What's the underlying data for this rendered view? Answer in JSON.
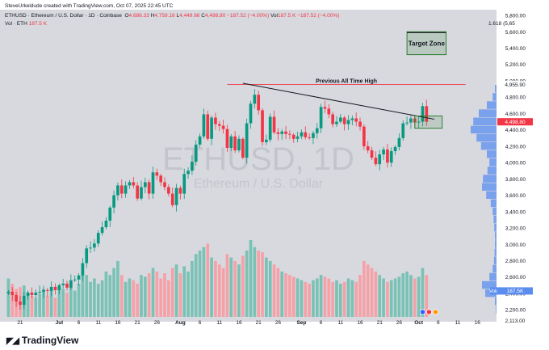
{
  "credit": "SteveUrkeldude created with TradingView.com, Oct 07, 2025 22:45 UTC",
  "legend": {
    "symbol": "ETHUSD · Ethereum / U.S. Dollar · 1D · Coinbase",
    "o_label": "O",
    "o": "4,686.33",
    "h_label": "H",
    "h": "4,759.16",
    "l_label": "L",
    "l": "4,449.66",
    "c_label": "C",
    "c": "4,498.80",
    "chg": "−187.52 (−4.00%)",
    "vol_label": "Vol",
    "vol": "187.5 K",
    "chg2": "−187.52 (−4.00%)"
  },
  "vol_legend": {
    "label": "Vol · ETH",
    "value": "187.5 K"
  },
  "watermark": {
    "symbol": "ETHUSD, 1D",
    "name": "Ethereum / U.S. Dollar"
  },
  "annotations": {
    "prev_ath": "Previous All Time High",
    "target_zone": "Target Zone",
    "fib": "1.618 (5,65"
  },
  "price_badges": {
    "high_label": "High",
    "high": "4,955.90",
    "last": "4,498.80",
    "volume_label": "Volume",
    "volume": "187.5K",
    "low_label": "Low",
    "low": "2,113.00"
  },
  "brand": "TradingView",
  "colors": {
    "up": "#089981",
    "down": "#f23645",
    "up_vol": "#79c2b5",
    "down_vol": "#f6a1a7",
    "target": "#2e7d32",
    "ath_line": "#f23645",
    "profile": "#5b8def",
    "bg": "#d8d9df"
  },
  "chart_data": {
    "type": "candlestick",
    "yticks": [
      2200,
      2400,
      2600,
      2800,
      3000,
      3200,
      3400,
      3600,
      3800,
      4000,
      4200,
      4400,
      4600,
      4800,
      5000,
      5200,
      5400,
      5600,
      5800
    ],
    "ylim": [
      2113,
      5850
    ],
    "xticks": [
      {
        "label": "21",
        "i": 3
      },
      {
        "label": "Jul",
        "i": 13
      },
      {
        "label": "6",
        "i": 18
      },
      {
        "label": "11",
        "i": 23
      },
      {
        "label": "16",
        "i": 28
      },
      {
        "label": "21",
        "i": 33
      },
      {
        "label": "26",
        "i": 38
      },
      {
        "label": "Aug",
        "i": 44
      },
      {
        "label": "6",
        "i": 49
      },
      {
        "label": "11",
        "i": 54
      },
      {
        "label": "16",
        "i": 59
      },
      {
        "label": "21",
        "i": 64
      },
      {
        "label": "26",
        "i": 69
      },
      {
        "label": "Sep",
        "i": 75
      },
      {
        "label": "6",
        "i": 80
      },
      {
        "label": "11",
        "i": 85
      },
      {
        "label": "16",
        "i": 90
      },
      {
        "label": "21",
        "i": 95
      },
      {
        "label": "26",
        "i": 100
      },
      {
        "label": "Oct",
        "i": 105
      },
      {
        "label": "6",
        "i": 110
      },
      {
        "label": "11",
        "i": 115
      },
      {
        "label": "16",
        "i": 120
      }
    ],
    "close": [
      2420,
      2380,
      2300,
      2260,
      2370,
      2410,
      2380,
      2410,
      2420,
      2440,
      2430,
      2480,
      2440,
      2500,
      2520,
      2470,
      2560,
      2570,
      2620,
      2770,
      2950,
      2960,
      3010,
      3140,
      3210,
      3290,
      3450,
      3600,
      3720,
      3620,
      3720,
      3760,
      3720,
      3560,
      3700,
      3760,
      3620,
      3880,
      3840,
      3760,
      3700,
      3620,
      3480,
      3690,
      3620,
      3860,
      3900,
      4010,
      4220,
      4320,
      4590,
      4290,
      4550,
      4470,
      4450,
      4410,
      4180,
      4320,
      4150,
      4290,
      4060,
      4480,
      4720,
      4830,
      4640,
      4250,
      4280,
      4560,
      4370,
      4350,
      4380,
      4350,
      4340,
      4290,
      4320,
      4370,
      4310,
      4300,
      4360,
      4420,
      4680,
      4660,
      4590,
      4470,
      4500,
      4550,
      4470,
      4520,
      4540,
      4500,
      4440,
      4200,
      4150,
      4060,
      3980,
      4100,
      4160,
      4000,
      4140,
      4190,
      4300,
      4480,
      4490,
      4540,
      4490,
      4500,
      4690,
      4499
    ],
    "volume": [
      110,
      95,
      80,
      85,
      90,
      70,
      60,
      55,
      65,
      80,
      60,
      75,
      55,
      90,
      80,
      70,
      85,
      75,
      95,
      130,
      120,
      100,
      110,
      95,
      105,
      130,
      120,
      140,
      160,
      120,
      100,
      110,
      105,
      95,
      120,
      115,
      125,
      140,
      130,
      110,
      125,
      105,
      140,
      150,
      125,
      145,
      130,
      160,
      180,
      190,
      200,
      210,
      170,
      160,
      150,
      140,
      180,
      170,
      160,
      150,
      175,
      190,
      220,
      200,
      190,
      185,
      170,
      160,
      150,
      140,
      130,
      125,
      120,
      115,
      110,
      105,
      100,
      95,
      105,
      110,
      120,
      115,
      110,
      100,
      105,
      95,
      100,
      110,
      105,
      100,
      120,
      160,
      150,
      140,
      130,
      120,
      110,
      100,
      105,
      110,
      115,
      125,
      130,
      120,
      110,
      115,
      140,
      120
    ],
    "volume_profile": [
      {
        "p": 2200,
        "v": 0.02
      },
      {
        "p": 2300,
        "v": 0.05
      },
      {
        "p": 2400,
        "v": 0.35
      },
      {
        "p": 2500,
        "v": 0.45
      },
      {
        "p": 2600,
        "v": 0.22
      },
      {
        "p": 2700,
        "v": 0.12
      },
      {
        "p": 2800,
        "v": 0.08
      },
      {
        "p": 2900,
        "v": 0.06
      },
      {
        "p": 3000,
        "v": 0.05
      },
      {
        "p": 3100,
        "v": 0.05
      },
      {
        "p": 3200,
        "v": 0.07
      },
      {
        "p": 3300,
        "v": 0.09
      },
      {
        "p": 3400,
        "v": 0.12
      },
      {
        "p": 3500,
        "v": 0.18
      },
      {
        "p": 3600,
        "v": 0.32
      },
      {
        "p": 3700,
        "v": 0.45
      },
      {
        "p": 3800,
        "v": 0.42
      },
      {
        "p": 3900,
        "v": 0.28
      },
      {
        "p": 4000,
        "v": 0.22
      },
      {
        "p": 4100,
        "v": 0.3
      },
      {
        "p": 4200,
        "v": 0.48
      },
      {
        "p": 4300,
        "v": 0.62
      },
      {
        "p": 4400,
        "v": 0.8
      },
      {
        "p": 4500,
        "v": 0.72
      },
      {
        "p": 4600,
        "v": 0.55
      },
      {
        "p": 4700,
        "v": 0.3
      },
      {
        "p": 4800,
        "v": 0.12
      },
      {
        "p": 4900,
        "v": 0.05
      }
    ],
    "ath_level": 4955.9,
    "trendline": [
      {
        "i": 60,
        "p": 4970
      },
      {
        "i": 109,
        "p": 4530
      }
    ],
    "target_zone": [
      5600,
      5320
    ],
    "target_i": [
      102,
      112
    ],
    "box": {
      "i": [
        104,
        111
      ],
      "p": [
        4570,
        4420
      ]
    }
  }
}
